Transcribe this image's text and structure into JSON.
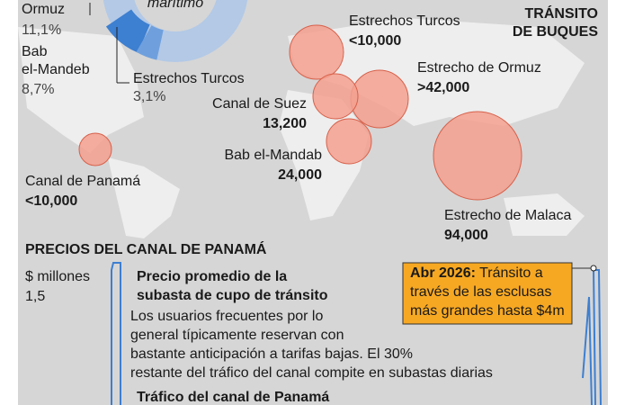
{
  "donut": {
    "center": "marítimo",
    "items": [
      {
        "name": "Ormuz",
        "share": "11,1%"
      },
      {
        "name": "Bab el-Mandeb",
        "share": "8,7%"
      },
      {
        "name": "Estrechos Turcos",
        "share": "3,1%"
      }
    ]
  },
  "title": [
    "TRÁNSITO",
    "DE  BUQUES"
  ],
  "points": [
    {
      "name": "Estrechos Turcos",
      "value": "<10,000"
    },
    {
      "name": "Estrecho de Ormuz",
      "value": ">42,000"
    },
    {
      "name": "Canal de Suez",
      "value": "13,200"
    },
    {
      "name": "Bab el-Mandab",
      "value": "24,000"
    },
    {
      "name": "Canal de Panamá",
      "value": "<10,000"
    },
    {
      "name": "Estrecho de Malaca",
      "value": "94,000"
    }
  ],
  "prices": {
    "title": "PRECIOS DEL CANAL DE PANAMÁ",
    "unit": "$ millones",
    "tick": "1,5",
    "heading": [
      "Precio promedio de la",
      "subasta de cupo de tránsito"
    ],
    "body": [
      "Los usuarios frecuentes por lo",
      "general típicamente reservan con",
      "bastante anticipación a tarifas bajas. El 30%",
      "restante del tráfico del canal compite en subastas diarias"
    ],
    "heading2": "Tráfico del canal de Panamá",
    "note": {
      "date": "Abr 2026:",
      "text": [
        "Tránsito a",
        "través de las esclusas",
        "más grandes hasta $4m"
      ]
    }
  }
}
